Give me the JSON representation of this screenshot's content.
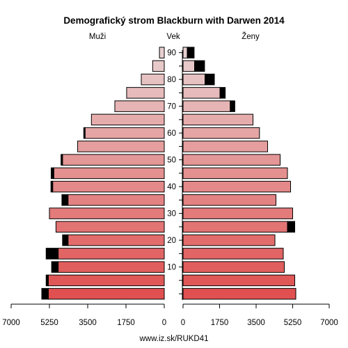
{
  "chart_data": {
    "type": "bar",
    "title": "Demografický strom Blackburn with Darwen 2014",
    "left_label": "Muži",
    "center_label": "Vek",
    "right_label": "Ženy",
    "footer": "www.iz.sk/RUKD41",
    "xlim": [
      0,
      7000
    ],
    "left_ticks": [
      "7000",
      "5250",
      "3500",
      "1750",
      "0"
    ],
    "right_ticks": [
      "0",
      "1750",
      "3500",
      "5250",
      "7000"
    ],
    "age_tick_labels": [
      "10",
      "20",
      "30",
      "40",
      "50",
      "60",
      "70",
      "80",
      "90"
    ],
    "age_groups": [
      "0-4",
      "5-9",
      "10-14",
      "15-19",
      "20-24",
      "25-29",
      "30-34",
      "35-39",
      "40-44",
      "45-49",
      "50-54",
      "55-59",
      "60-64",
      "65-69",
      "70-74",
      "75-79",
      "80-84",
      "85-89",
      "90+"
    ],
    "series": [
      {
        "name": "Muži",
        "values": [
          5300,
          5300,
          4850,
          4850,
          4400,
          4950,
          5250,
          4400,
          5100,
          5050,
          4650,
          3960,
          3620,
          3330,
          2260,
          1720,
          1050,
          530,
          220
        ],
        "overflow": [
          300,
          100,
          300,
          550,
          250,
          0,
          0,
          280,
          80,
          120,
          70,
          0,
          60,
          0,
          0,
          0,
          0,
          0,
          0
        ]
      },
      {
        "name": "Ženy",
        "values": [
          5400,
          5350,
          4850,
          4800,
          4400,
          5000,
          5250,
          4450,
          5150,
          5000,
          4650,
          4050,
          3660,
          3350,
          2260,
          1770,
          1050,
          550,
          200
        ],
        "overflow": [
          0,
          0,
          0,
          0,
          0,
          350,
          0,
          0,
          0,
          0,
          0,
          0,
          0,
          0,
          220,
          250,
          450,
          480,
          330
        ]
      }
    ],
    "colors": {
      "bar_young": "#e05050",
      "bar_old": "#e8d0d0",
      "overflow": "#000000"
    }
  }
}
